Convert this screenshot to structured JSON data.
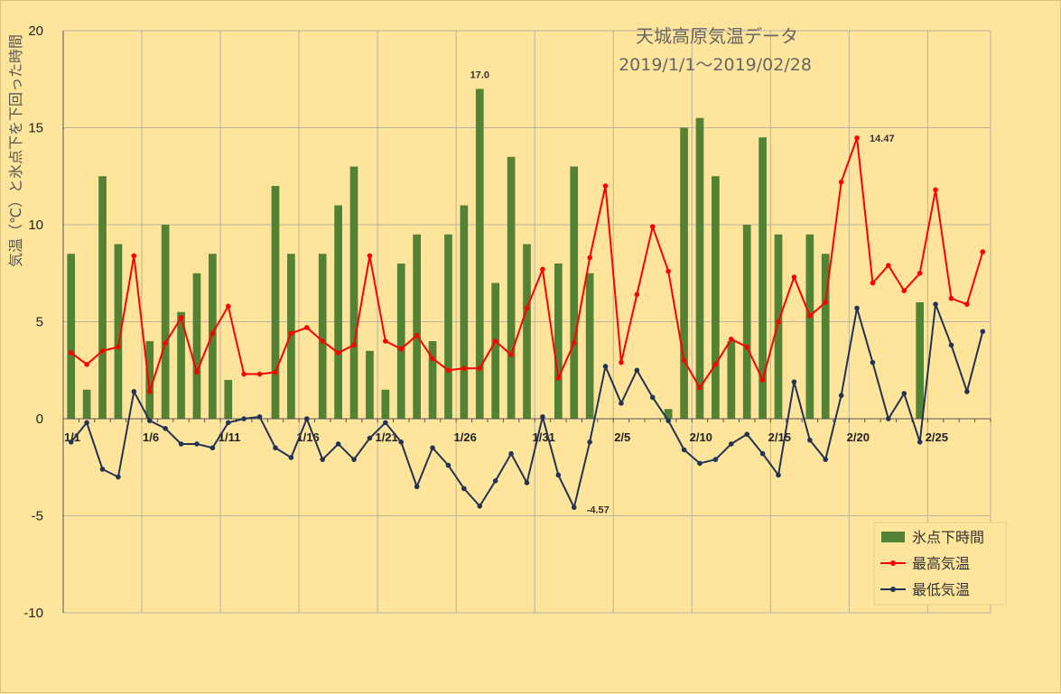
{
  "chart_data": {
    "type": "bar+line",
    "title": "天城高原気温データ",
    "subtitle": "2019/1/1～2019/02/28",
    "ylabel": "気温（℃）と氷点下を下回った時間",
    "ylim": [
      -10,
      20
    ],
    "yticks": [
      "20",
      "15",
      "10",
      "5",
      "0",
      "-5",
      "-10"
    ],
    "grid": true,
    "legend_position": "bottom-right",
    "x_tick_labels": [
      "1/1",
      "1/6",
      "1/11",
      "1/16",
      "1/21",
      "1/26",
      "1/31",
      "2/5",
      "2/10",
      "2/15",
      "2/20",
      "2/25"
    ],
    "series": [
      {
        "name": "氷点下時間",
        "type": "bar",
        "color": "#548235",
        "values": [
          8.5,
          1.5,
          12.5,
          9,
          0,
          4,
          10,
          5.5,
          7.5,
          8.5,
          2,
          0,
          0,
          12,
          8.5,
          0,
          8.5,
          11,
          13,
          3.5,
          1.5,
          8,
          9.5,
          4,
          9.5,
          11,
          17,
          7,
          13.5,
          9,
          0,
          8,
          13,
          7.5,
          0,
          0,
          0,
          0,
          0.5,
          15,
          15.5,
          12.5,
          4,
          10,
          14.5,
          9.5,
          0,
          9.5,
          8.5,
          0,
          0,
          0,
          0,
          0,
          6,
          0,
          0,
          0,
          0
        ]
      },
      {
        "name": "最高気温",
        "type": "line",
        "color": "#ff0000",
        "values": [
          3.4,
          2.8,
          3.5,
          3.7,
          8.4,
          1.4,
          3.9,
          5.2,
          2.4,
          4.4,
          5.8,
          2.3,
          2.3,
          2.4,
          4.4,
          4.7,
          4.0,
          3.4,
          3.8,
          8.4,
          4.0,
          3.6,
          4.3,
          3.1,
          2.5,
          2.6,
          2.6,
          4.0,
          3.3,
          5.7,
          7.7,
          2.1,
          3.9,
          8.3,
          12.0,
          2.9,
          6.4,
          9.9,
          7.6,
          3.0,
          1.6,
          2.8,
          4.1,
          3.7,
          2.0,
          5.0,
          7.3,
          5.3,
          6.0,
          12.2,
          14.47,
          7.0,
          7.9,
          6.6,
          7.5,
          11.8,
          6.2,
          5.9,
          8.6
        ]
      },
      {
        "name": "最低気温",
        "type": "line",
        "color": "#223355",
        "values": [
          -1.2,
          -0.2,
          -2.6,
          -3.0,
          1.4,
          -0.1,
          -0.5,
          -1.3,
          -1.3,
          -1.5,
          -0.2,
          0.0,
          0.1,
          -1.5,
          -2.0,
          0.0,
          -2.1,
          -1.3,
          -2.1,
          -1.0,
          -0.2,
          -1.2,
          -3.5,
          -1.5,
          -2.4,
          -3.6,
          -4.5,
          -3.2,
          -1.8,
          -3.3,
          0.1,
          -2.9,
          -4.57,
          -1.2,
          2.7,
          0.8,
          2.5,
          1.1,
          -0.1,
          -1.6,
          -2.3,
          -2.1,
          -1.3,
          -0.8,
          -1.8,
          -2.9,
          1.9,
          -1.1,
          -2.1,
          1.2,
          5.7,
          2.9,
          0.0,
          1.3,
          -1.2,
          5.9,
          3.8,
          1.4,
          4.5
        ]
      }
    ],
    "annotations": [
      {
        "series": "氷点下時間",
        "index": 26,
        "text": "17.0"
      },
      {
        "series": "最高気温",
        "index": 50,
        "text": "14.47"
      },
      {
        "series": "最低気温",
        "index": 32,
        "text": "-4.57"
      }
    ]
  }
}
